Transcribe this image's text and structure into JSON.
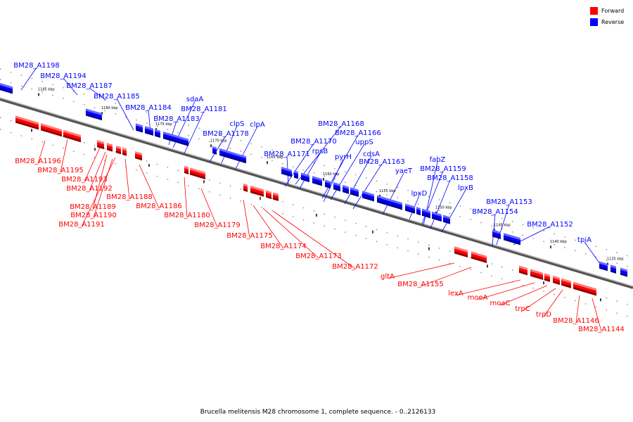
{
  "caption": "Brucella melitensis M28 chromosome 1, complete sequence. - 0..2126133",
  "legend": {
    "forward": {
      "label": "Forward",
      "color": "#ff0000"
    },
    "reverse": {
      "label": "Reverse",
      "color": "#0000ff"
    }
  },
  "ticks": [
    "1185 kbp",
    "1180 kbp",
    "1175 kbp",
    "1170 kbp",
    "1165 kbp",
    "1160 kbp",
    "1155 kbp",
    "1150 kbp",
    "1145 kbp",
    "1140 kbp",
    "1135 kbp"
  ],
  "reverse_genes": [
    "BM28_A1198",
    "BM28_A1194",
    "BM28_A1187",
    "BM28_A1185",
    "BM28_A1184",
    "sdaA",
    "BM28_A1181",
    "BM28_A1183",
    "clpS",
    "clpA",
    "BM28_A1178",
    "BM28_A1168",
    "BM28_A1170",
    "BM28_A1166",
    "rpsB",
    "BM28_A1171",
    "uppS",
    "pyrH",
    "cdsA",
    "BM28_A1163",
    "yaeT",
    "fabZ",
    "BM28_A1159",
    "lpxD",
    "BM28_A1158",
    "lpxB",
    "BM28_A1153",
    "BM28_A1154",
    "BM28_A1152",
    "tpiA"
  ],
  "forward_genes": [
    "BM28_A1196",
    "BM28_A1195",
    "BM28_A1193",
    "BM28_A1192",
    "BM28_A1188",
    "BM28_A1189",
    "BM28_A1186",
    "BM28_A1190",
    "BM28_A1191",
    "BM28_A1180",
    "BM28_A1179",
    "BM28_A1175",
    "BM28_A1174",
    "BM28_A1173",
    "BM28_A1172",
    "gltA",
    "BM28_A1155",
    "lexA",
    "moeA",
    "moaC",
    "trpC",
    "trpD",
    "BM28_A1146",
    "BM28_A1144"
  ]
}
